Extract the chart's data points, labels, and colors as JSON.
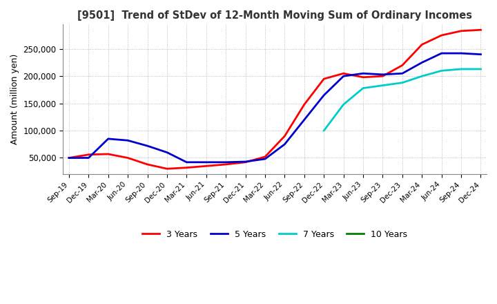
{
  "title": "[9501]  Trend of StDev of 12-Month Moving Sum of Ordinary Incomes",
  "ylabel": "Amount (million yen)",
  "ylim": [
    20000,
    295000
  ],
  "yticks": [
    50000,
    100000,
    150000,
    200000,
    250000
  ],
  "line_colors": {
    "3y": "#ff0000",
    "5y": "#0000cc",
    "7y": "#00cccc",
    "10y": "#008000"
  },
  "legend_labels": [
    "3 Years",
    "5 Years",
    "7 Years",
    "10 Years"
  ],
  "x_labels": [
    "Sep-19",
    "Dec-19",
    "Mar-20",
    "Jun-20",
    "Sep-20",
    "Dec-20",
    "Mar-21",
    "Jun-21",
    "Sep-21",
    "Dec-21",
    "Mar-22",
    "Jun-22",
    "Sep-22",
    "Dec-22",
    "Mar-23",
    "Jun-23",
    "Sep-23",
    "Dec-23",
    "Mar-24",
    "Jun-24",
    "Sep-24",
    "Dec-24"
  ],
  "data_3y": [
    50000,
    56000,
    57000,
    50000,
    38000,
    30000,
    32000,
    35000,
    38000,
    42000,
    52000,
    90000,
    148000,
    195000,
    205000,
    198000,
    200000,
    220000,
    258000,
    275000,
    283000,
    285000
  ],
  "data_5y": [
    50000,
    50000,
    85000,
    82000,
    72000,
    60000,
    42000,
    42000,
    42000,
    43000,
    48000,
    75000,
    120000,
    165000,
    200000,
    205000,
    203000,
    205000,
    225000,
    242000,
    242000,
    240000
  ],
  "data_7y": [
    null,
    null,
    null,
    null,
    null,
    null,
    null,
    null,
    null,
    null,
    null,
    null,
    null,
    100000,
    148000,
    178000,
    183000,
    188000,
    200000,
    210000,
    213000,
    213000
  ],
  "data_10y": [
    null,
    null,
    null,
    null,
    null,
    null,
    null,
    null,
    null,
    null,
    null,
    null,
    null,
    null,
    null,
    null,
    null,
    null,
    null,
    null,
    null,
    null
  ],
  "background_color": "#ffffff",
  "grid_color": "#aaaaaa"
}
